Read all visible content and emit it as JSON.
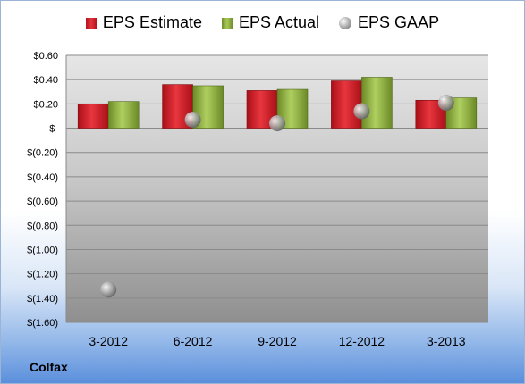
{
  "company": "Colfax",
  "chart_data": {
    "type": "bar",
    "categories": [
      "3-2012",
      "6-2012",
      "9-2012",
      "12-2012",
      "3-2013"
    ],
    "series": [
      {
        "name": "EPS Estimate",
        "values": [
          0.2,
          0.36,
          0.31,
          0.39,
          0.23
        ],
        "color": "#c8202a",
        "style": "bar"
      },
      {
        "name": "EPS Actual",
        "values": [
          0.22,
          0.35,
          0.32,
          0.42,
          0.25
        ],
        "color": "#8fb043",
        "style": "bar"
      },
      {
        "name": "EPS GAAP",
        "values": [
          -1.33,
          0.07,
          0.04,
          0.14,
          0.21
        ],
        "color": "#9a9a9a",
        "style": "marker"
      }
    ],
    "ylim": [
      -1.6,
      0.6
    ],
    "yticks": [
      0.6,
      0.4,
      0.2,
      0,
      -0.2,
      -0.4,
      -0.6,
      -0.8,
      -1.0,
      -1.2,
      -1.4,
      -1.6
    ],
    "ytick_labels": [
      "$0.60",
      "$0.40",
      "$0.20",
      "$-",
      "$(0.20)",
      "$(0.40)",
      "$(0.60)",
      "$(0.80)",
      "$(1.00)",
      "$(1.20)",
      "$(1.40)",
      "$(1.60)"
    ],
    "grid": true,
    "legend": "top"
  }
}
